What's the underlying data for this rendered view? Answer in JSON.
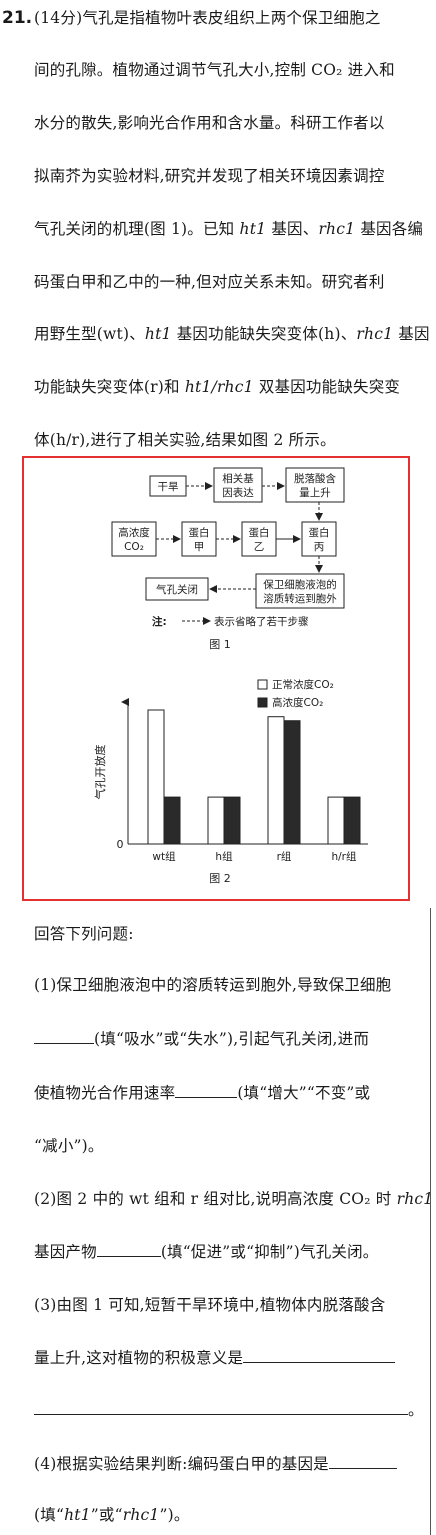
{
  "question": {
    "number": "21.",
    "intro_lines": [
      "(14分)气孔是指植物叶表皮组织上两个保卫细胞之",
      "间的孔隙。植物通过调节气孔大小,控制 CO₂ 进入和",
      "水分的散失,影响光合作用和含水量。科研工作者以",
      "拟南芥为实验材料,研究并发现了相关环境因素调控",
      "气孔关闭的机理(图 1)。已知 ht1 基因、rhc1 基因各编",
      "码蛋白甲和乙中的一种,但对应关系未知。研究者利",
      "用野生型(wt)、ht1 基因功能缺失突变体(h)、rhc1 基因",
      "功能缺失突变体(r)和 ht1/rhc1 双基因功能缺失突变",
      "体(h/r),进行了相关实验,结果如图 2 所示。"
    ]
  },
  "figure1": {
    "boxes": {
      "drought": "干旱",
      "gene_expr_1": "相关基",
      "gene_expr_2": "因表达",
      "aba_1": "脱落酸含",
      "aba_2": "量上升",
      "co2_1": "高浓度",
      "co2_2": "CO₂",
      "protein_a_1": "蛋白",
      "protein_a_2": "甲",
      "protein_b_1": "蛋白",
      "protein_b_2": "乙",
      "protein_c_1": "蛋白",
      "protein_c_2": "丙",
      "transport_1": "保卫细胞液泡的",
      "transport_2": "溶质转运到胞外",
      "closure": "气孔关闭"
    },
    "note_label": "注:",
    "note_text": "表示省略了若干步骤",
    "caption": "图 1"
  },
  "figure2": {
    "caption": "图 2",
    "chart_data": {
      "type": "bar",
      "categories": [
        "wt组",
        "h组",
        "r组",
        "h/r组"
      ],
      "series": [
        {
          "name": "正常浓度CO₂",
          "values": [
            100,
            35,
            95,
            35
          ],
          "color": "#ffffff"
        },
        {
          "name": "高浓度CO₂",
          "values": [
            35,
            35,
            92,
            35
          ],
          "color": "#2a2a2a"
        }
      ],
      "ylabel": "气孔开放度",
      "y_origin_label": "0",
      "ylim": [
        0,
        100
      ],
      "legend_position": "top-right"
    }
  },
  "answers": {
    "prompt": "回答下列问题:",
    "q1_l1": "(1)保卫细胞液泡中的溶质转运到胞外,导致保卫细胞",
    "q1_l2": "(填“吸水”或“失水”),引起气孔关闭,进而",
    "q1_l3": "使植物光合作用速率",
    "q1_l3b": "(填“增大”“不变”或",
    "q1_l4": "“减小”)。",
    "q2_l1": "(2)图 2 中的 wt 组和 r 组对比,说明高浓度 CO₂ 时 rhc1",
    "q2_l2a": "基因产物",
    "q2_l2b": "(填“促进”或“抑制”)气孔关闭。",
    "q3_l1": "(3)由图 1 可知,短暂干旱环境中,植物体内脱落酸含",
    "q3_l2": "量上升,这对植物的积极意义是",
    "q3_end": "。",
    "q4_l1": "(4)根据实验结果判断:编码蛋白甲的基因是",
    "q4_l2": "(填“ht1”或“rhc1”)。"
  }
}
